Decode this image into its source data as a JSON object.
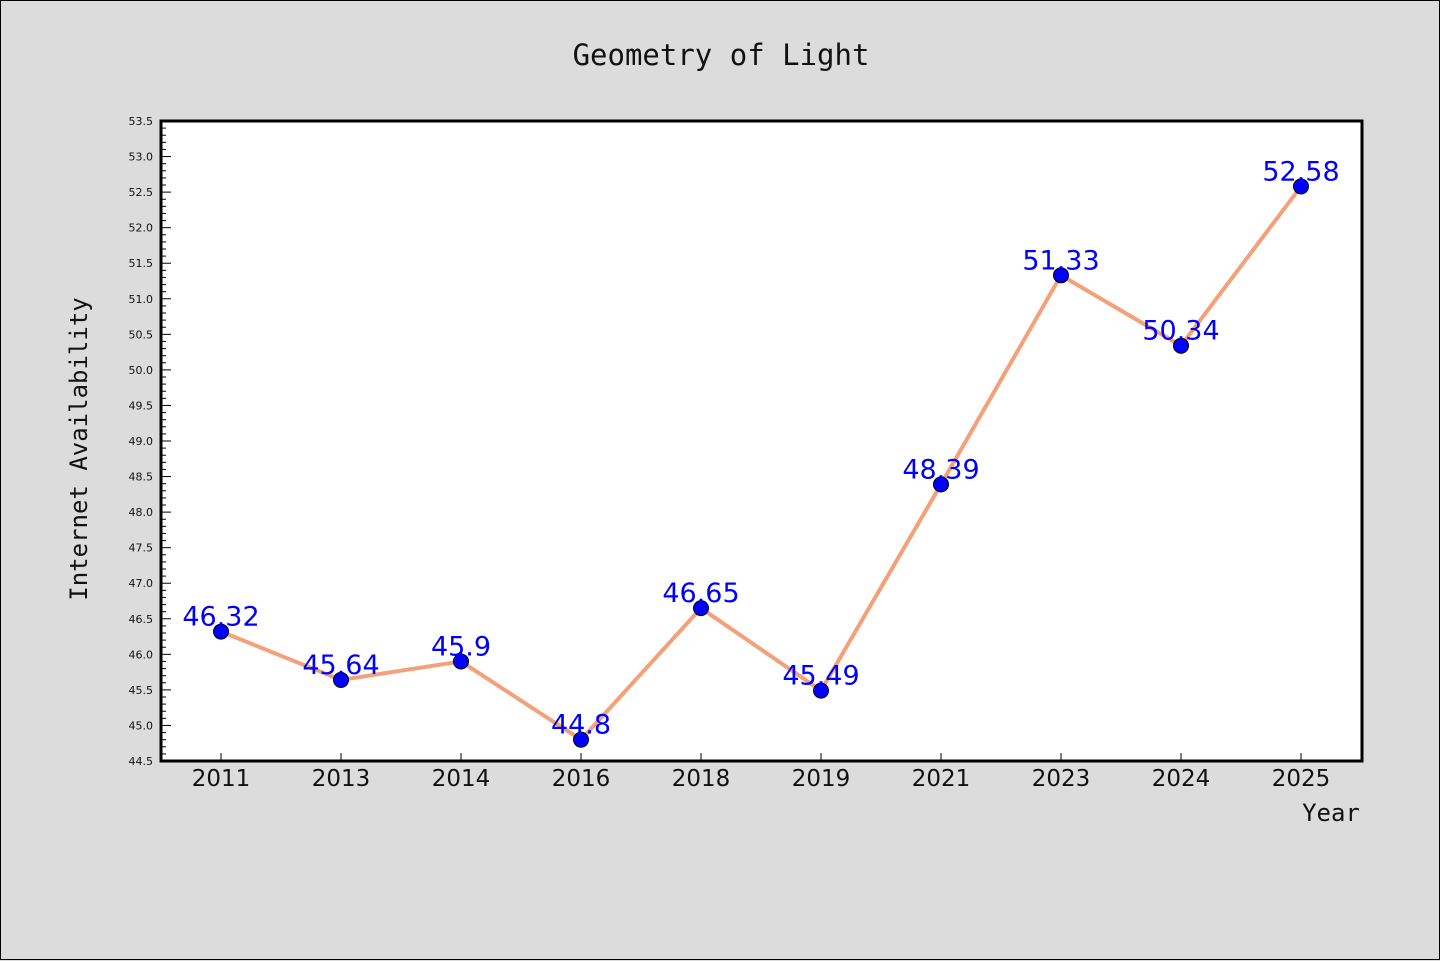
{
  "chart_data": {
    "type": "line",
    "title": "Geometry of Light",
    "xlabel": "Year",
    "ylabel": "Internet Availability",
    "categories": [
      "2011",
      "2013",
      "2014",
      "2016",
      "2018",
      "2019",
      "2021",
      "2023",
      "2024",
      "2025"
    ],
    "series": [
      {
        "values": [
          46.32,
          45.64,
          45.9,
          44.8,
          46.65,
          45.49,
          48.39,
          51.33,
          50.34,
          52.58
        ],
        "line_color": "#f4a07a",
        "marker_color": "#0000ff"
      }
    ],
    "data_labels": [
      "46.32",
      "45.64",
      "45.9",
      "44.8",
      "46.65",
      "45.49",
      "48.39",
      "51.33",
      "50.34",
      "52.58"
    ],
    "ylim": [
      44.5,
      53.5
    ],
    "yticks": [
      "44.5",
      "45.0",
      "45.5",
      "46.0",
      "46.5",
      "47.0",
      "47.5",
      "48.0",
      "48.5",
      "49.0",
      "49.5",
      "50.0",
      "50.5",
      "51.0",
      "51.5",
      "52.0",
      "52.5",
      "53.0",
      "53.5"
    ],
    "grid": false,
    "legend": "none",
    "colors": {
      "background": "#dcdcdc",
      "plot_background": "#ffffff",
      "label_color": "#0000ff"
    }
  }
}
